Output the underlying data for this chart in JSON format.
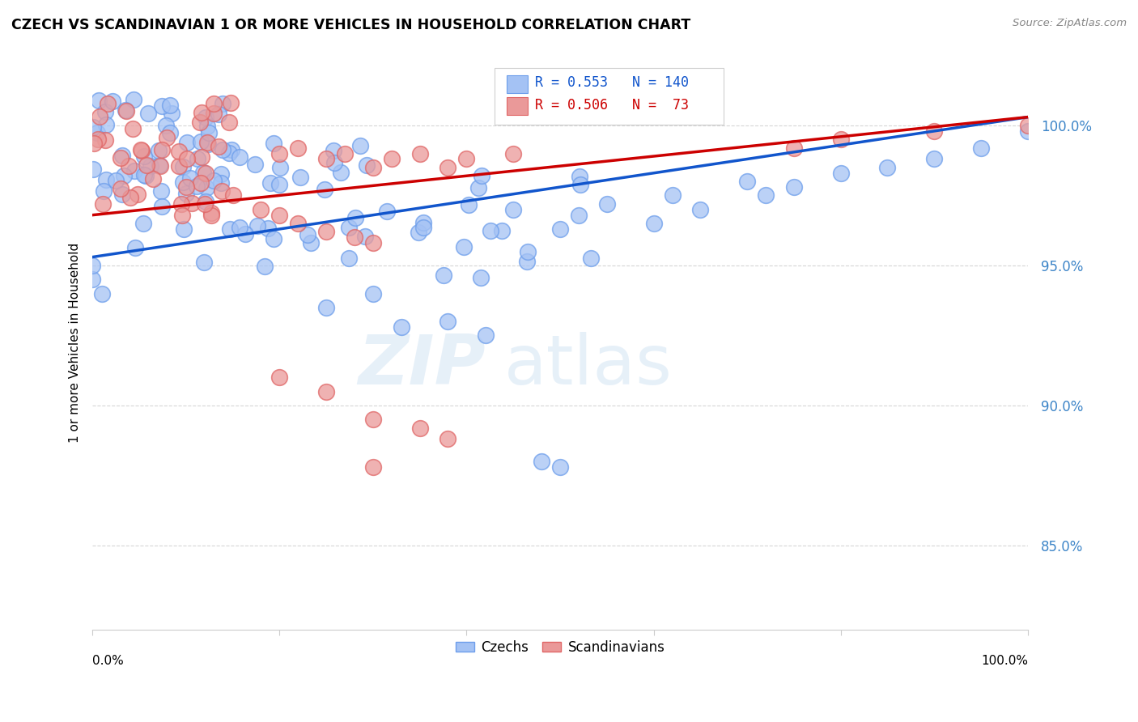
{
  "title": "CZECH VS SCANDINAVIAN 1 OR MORE VEHICLES IN HOUSEHOLD CORRELATION CHART",
  "source": "Source: ZipAtlas.com",
  "ylabel": "1 or more Vehicles in Household",
  "watermark_zip": "ZIP",
  "watermark_atlas": "atlas",
  "legend_labels": [
    "Czechs",
    "Scandinavians"
  ],
  "blue_R": 0.553,
  "blue_N": 140,
  "pink_R": 0.506,
  "pink_N": 73,
  "blue_color": "#a4c2f4",
  "pink_color": "#ea9999",
  "blue_edge_color": "#6d9eeb",
  "pink_edge_color": "#e06666",
  "blue_line_color": "#1155cc",
  "pink_line_color": "#cc0000",
  "ytick_labels": [
    "100.0%",
    "95.0%",
    "90.0%",
    "85.0%"
  ],
  "ytick_values": [
    1.0,
    0.95,
    0.9,
    0.85
  ],
  "xlim": [
    0.0,
    1.0
  ],
  "ylim": [
    0.82,
    1.025
  ],
  "blue_line_x0": 0.0,
  "blue_line_x1": 1.0,
  "blue_line_y0": 0.953,
  "blue_line_y1": 1.003,
  "pink_line_x0": 0.0,
  "pink_line_x1": 1.0,
  "pink_line_y0": 0.968,
  "pink_line_y1": 1.003
}
